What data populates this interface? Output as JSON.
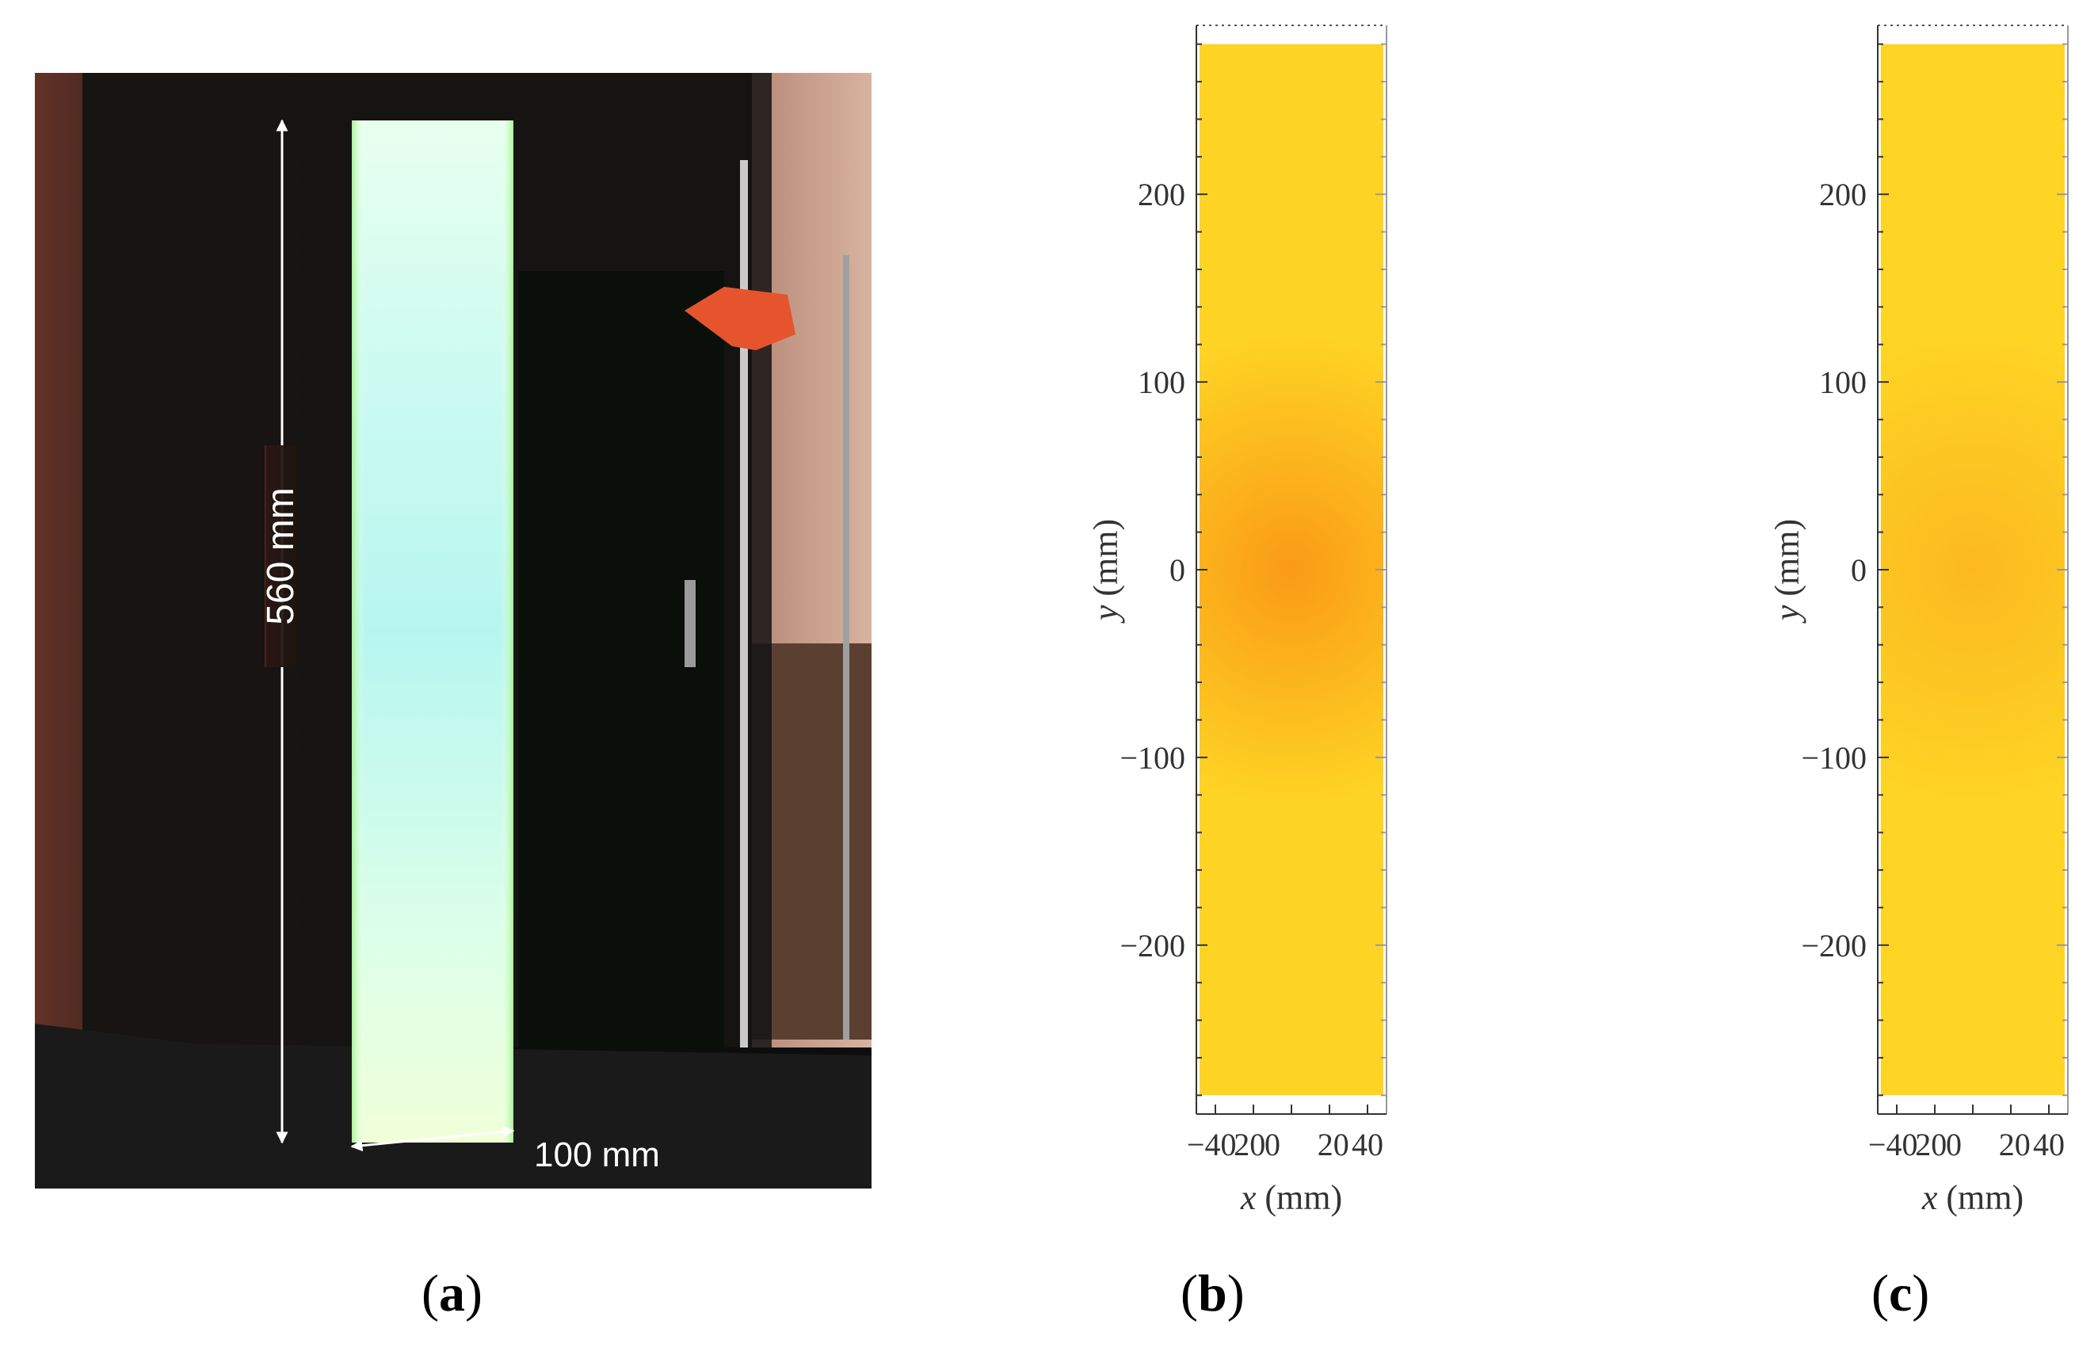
{
  "panels": [
    {
      "label_open": "(",
      "label": "a",
      "label_close": ")"
    },
    {
      "label_open": "(",
      "label": "b",
      "label_close": ")"
    },
    {
      "label_open": "(",
      "label": "c",
      "label_close": ")"
    }
  ],
  "photo": {
    "height_annotation": "560 mm",
    "width_annotation": "100 mm"
  },
  "chart_data": [
    {
      "type": "heatmap",
      "panel": "b",
      "xlabel_var": "x",
      "xlabel_unit": " (mm)",
      "ylabel_var": "y",
      "ylabel_unit": " (mm)",
      "x_ticks": [
        "−40",
        "20",
        "0",
        "20",
        "40"
      ],
      "y_ticks": [
        200,
        100,
        0,
        -100,
        -200
      ],
      "xlim": [
        -50,
        50
      ],
      "ylim": [
        -290,
        290
      ],
      "data_extent": {
        "x": [
          -50,
          50
        ],
        "y": [
          -280,
          280
        ]
      },
      "colors": {
        "center": "#fa9a16",
        "edge": "#fed424"
      },
      "hotspot": {
        "x": 0,
        "y": 0
      }
    },
    {
      "type": "heatmap",
      "panel": "c",
      "xlabel_var": "x",
      "xlabel_unit": " (mm)",
      "ylabel_var": "y",
      "ylabel_unit": " (mm)",
      "x_ticks": [
        "−40",
        "20",
        "0",
        "20",
        "40"
      ],
      "y_ticks": [
        200,
        100,
        0,
        -100,
        -200
      ],
      "xlim": [
        -50,
        50
      ],
      "ylim": [
        -290,
        290
      ],
      "data_extent": {
        "x": [
          -50,
          50
        ],
        "y": [
          -280,
          280
        ]
      },
      "colors": {
        "center": "#fbb91f",
        "edge": "#fed425"
      },
      "hotspot": {
        "x": 0,
        "y": 0
      }
    }
  ]
}
